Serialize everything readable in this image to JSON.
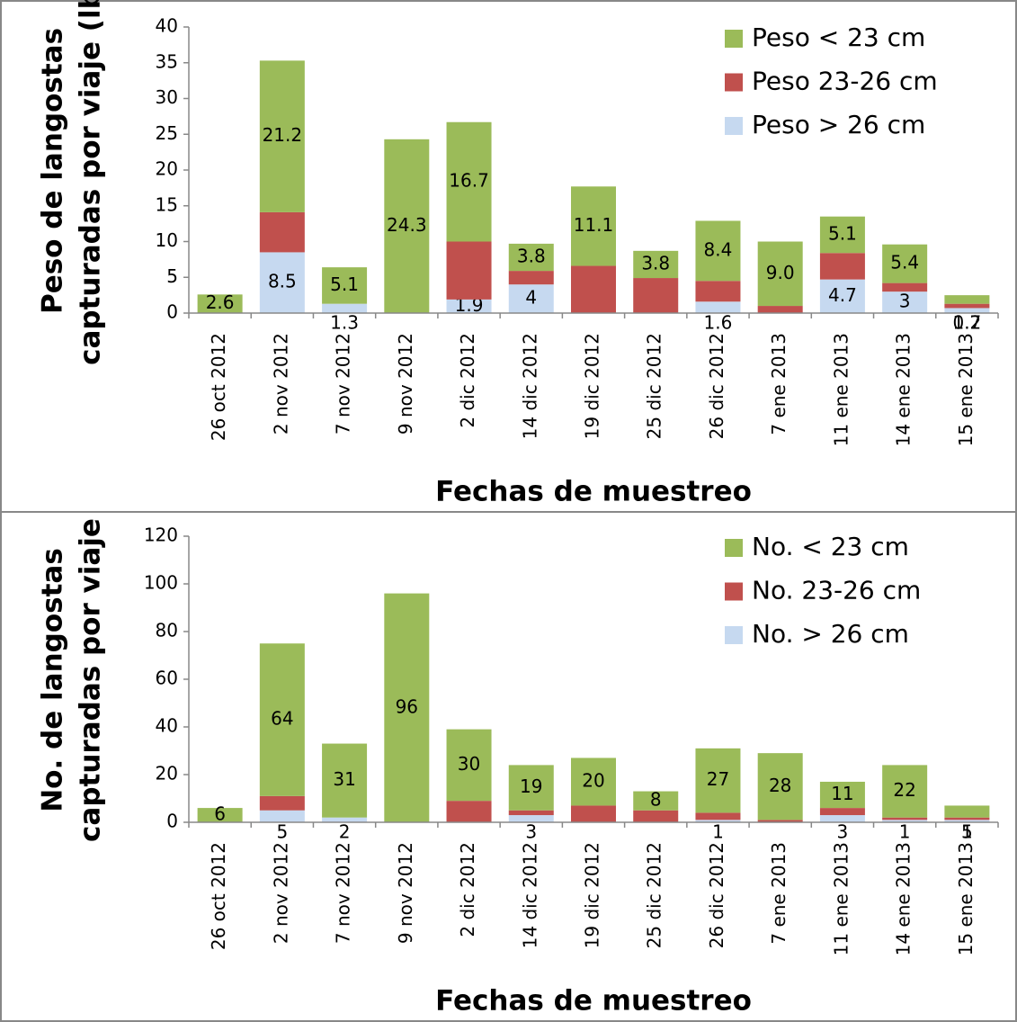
{
  "chart_data": [
    {
      "type": "bar",
      "stacked": true,
      "ylabel": [
        "Peso de langostas",
        "capturadas por viaje (lb)"
      ],
      "xlabel": "Fechas de muestreo",
      "categories": [
        "26 oct 2012",
        "2 nov 2012",
        "7 nov 2012",
        "9 nov 2012",
        "2 dic 2012",
        "14 dic 2012",
        "19 dic 2012",
        "25 dic 2012",
        "26 dic 2012",
        "7 ene 2013",
        "11 ene 2013",
        "14 ene 2013",
        "15 ene 2013"
      ],
      "series": [
        {
          "name": "Peso > 26 cm",
          "color": "#c6d9f0",
          "values": [
            0,
            8.5,
            1.3,
            0,
            1.9,
            4,
            0,
            0,
            1.6,
            0,
            4.7,
            3,
            0.7
          ],
          "value_labels": [
            null,
            "8.5",
            "1.3",
            null,
            "1.9",
            "4",
            null,
            null,
            "1.6",
            null,
            "4.7",
            "3",
            "0.7"
          ]
        },
        {
          "name": "Peso 23-26 cm",
          "color": "#c0504d",
          "values": [
            0,
            5.6,
            0,
            0,
            8.1,
            1.9,
            6.6,
            4.9,
            2.9,
            1.0,
            3.7,
            1.2,
            0.6
          ]
        },
        {
          "name": "Peso < 23 cm",
          "color": "#9bbb59",
          "values": [
            2.6,
            21.2,
            5.1,
            24.3,
            16.7,
            3.8,
            11.1,
            3.8,
            8.4,
            9.0,
            5.1,
            5.4,
            1.2
          ],
          "value_labels": [
            "2.6",
            "21.2",
            "5.1",
            "24.3",
            "16.7",
            "3.8",
            "11.1",
            "3.8",
            "8.4",
            "9.0",
            "5.1",
            "5.4",
            "1.2"
          ]
        }
      ],
      "ylim": [
        0,
        40
      ],
      "yticks": [
        0,
        5,
        10,
        15,
        20,
        25,
        30,
        35,
        40
      ],
      "legend": "upper right"
    },
    {
      "type": "bar",
      "stacked": true,
      "ylabel": [
        "No. de langostas",
        "capturadas por viaje"
      ],
      "xlabel": "Fechas de muestreo",
      "categories": [
        "26 oct 2012",
        "2 nov 2012",
        "7 nov 2012",
        "9 nov 2012",
        "2 dic 2012",
        "14 dic 2012",
        "19 dic 2012",
        "25 dic 2012",
        "26 dic 2012",
        "7 ene 2013",
        "11 ene 2013",
        "14 ene 2013",
        "15 ene 2013"
      ],
      "series": [
        {
          "name": "No. > 26 cm",
          "color": "#c6d9f0",
          "values": [
            0,
            5,
            2,
            0,
            0,
            3,
            0,
            0,
            1,
            0,
            3,
            1,
            1
          ],
          "value_labels": [
            null,
            "5",
            "2",
            null,
            null,
            "3",
            null,
            null,
            "1",
            null,
            "3",
            "1",
            "1"
          ]
        },
        {
          "name": "No. 23-26 cm",
          "color": "#c0504d",
          "values": [
            0,
            6,
            0,
            0,
            9,
            2,
            7,
            5,
            3,
            1,
            3,
            1,
            1
          ]
        },
        {
          "name": "No. < 23 cm",
          "color": "#9bbb59",
          "values": [
            6,
            64,
            31,
            96,
            30,
            19,
            20,
            8,
            27,
            28,
            11,
            22,
            5
          ],
          "value_labels": [
            "6",
            "64",
            "31",
            "96",
            "30",
            "19",
            "20",
            "8",
            "27",
            "28",
            "11",
            "22",
            "5"
          ]
        }
      ],
      "ylim": [
        0,
        120
      ],
      "yticks": [
        0,
        20,
        40,
        60,
        80,
        100,
        120
      ],
      "legend": "upper right"
    }
  ]
}
